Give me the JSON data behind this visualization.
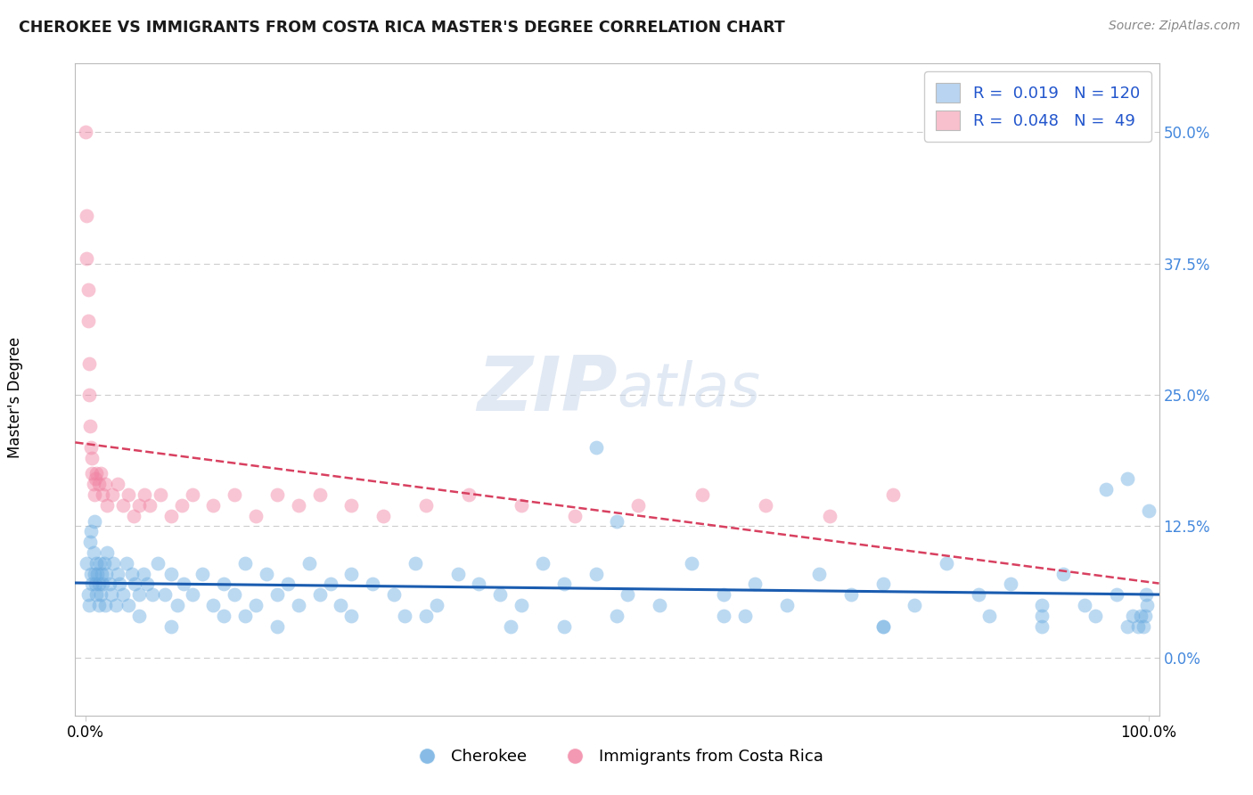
{
  "title": "CHEROKEE VS IMMIGRANTS FROM COSTA RICA MASTER'S DEGREE CORRELATION CHART",
  "source": "Source: ZipAtlas.com",
  "ylabel_left": "Master's Degree",
  "watermark_line1": "ZIP",
  "watermark_line2": "atlas",
  "xlim": [
    -0.01,
    1.01
  ],
  "ylim": [
    -0.055,
    0.565
  ],
  "xtick_pos": [
    0.0,
    1.0
  ],
  "xtick_labels": [
    "0.0%",
    "100.0%"
  ],
  "ytick_values": [
    0.0,
    0.125,
    0.25,
    0.375,
    0.5
  ],
  "ytick_labels": [
    "0.0%",
    "12.5%",
    "25.0%",
    "37.5%",
    "50.0%"
  ],
  "cherokee_R": "0.019",
  "cherokee_N": "120",
  "costa_rica_R": "0.048",
  "costa_rica_N": "49",
  "legend_fill_cherokee": "#b8d4f0",
  "legend_fill_costa_rica": "#f8c0cc",
  "scatter_color_cherokee": "#6aabe0",
  "scatter_color_costa_rica": "#f080a0",
  "trend_color_cherokee": "#1a5cb0",
  "trend_color_costa_rica": "#d84060",
  "grid_color": "#cccccc",
  "bg_color": "#ffffff",
  "title_color": "#1a1a1a",
  "source_color": "#888888",
  "legend_text_color": "#2255cc",
  "ytick_color": "#4488dd",
  "cherokee_x": [
    0.001,
    0.002,
    0.003,
    0.004,
    0.005,
    0.005,
    0.006,
    0.007,
    0.008,
    0.008,
    0.009,
    0.01,
    0.01,
    0.011,
    0.012,
    0.012,
    0.013,
    0.014,
    0.015,
    0.016,
    0.017,
    0.018,
    0.019,
    0.02,
    0.022,
    0.024,
    0.026,
    0.028,
    0.03,
    0.032,
    0.035,
    0.038,
    0.04,
    0.043,
    0.046,
    0.05,
    0.054,
    0.058,
    0.063,
    0.068,
    0.074,
    0.08,
    0.086,
    0.092,
    0.1,
    0.11,
    0.12,
    0.13,
    0.14,
    0.15,
    0.16,
    0.17,
    0.18,
    0.19,
    0.2,
    0.21,
    0.22,
    0.23,
    0.24,
    0.25,
    0.27,
    0.29,
    0.31,
    0.33,
    0.35,
    0.37,
    0.39,
    0.41,
    0.43,
    0.45,
    0.48,
    0.51,
    0.54,
    0.57,
    0.6,
    0.63,
    0.66,
    0.69,
    0.72,
    0.75,
    0.78,
    0.81,
    0.84,
    0.87,
    0.9,
    0.92,
    0.94,
    0.96,
    0.97,
    0.98,
    0.985,
    0.99,
    0.993,
    0.995,
    0.997,
    0.998,
    0.999,
    1.0,
    0.48,
    0.5,
    0.05,
    0.08,
    0.13,
    0.18,
    0.25,
    0.32,
    0.4,
    0.5,
    0.62,
    0.75,
    0.85,
    0.9,
    0.95,
    0.98,
    0.15,
    0.3,
    0.45,
    0.6,
    0.75,
    0.9
  ],
  "cherokee_y": [
    0.09,
    0.06,
    0.05,
    0.11,
    0.08,
    0.12,
    0.07,
    0.1,
    0.08,
    0.13,
    0.07,
    0.09,
    0.06,
    0.08,
    0.07,
    0.05,
    0.09,
    0.06,
    0.08,
    0.07,
    0.09,
    0.05,
    0.08,
    0.1,
    0.07,
    0.06,
    0.09,
    0.05,
    0.08,
    0.07,
    0.06,
    0.09,
    0.05,
    0.08,
    0.07,
    0.06,
    0.08,
    0.07,
    0.06,
    0.09,
    0.06,
    0.08,
    0.05,
    0.07,
    0.06,
    0.08,
    0.05,
    0.07,
    0.06,
    0.09,
    0.05,
    0.08,
    0.06,
    0.07,
    0.05,
    0.09,
    0.06,
    0.07,
    0.05,
    0.08,
    0.07,
    0.06,
    0.09,
    0.05,
    0.08,
    0.07,
    0.06,
    0.05,
    0.09,
    0.07,
    0.08,
    0.06,
    0.05,
    0.09,
    0.06,
    0.07,
    0.05,
    0.08,
    0.06,
    0.07,
    0.05,
    0.09,
    0.06,
    0.07,
    0.05,
    0.08,
    0.05,
    0.16,
    0.06,
    0.17,
    0.04,
    0.03,
    0.04,
    0.03,
    0.04,
    0.06,
    0.05,
    0.14,
    0.2,
    0.13,
    0.04,
    0.03,
    0.04,
    0.03,
    0.04,
    0.04,
    0.03,
    0.04,
    0.04,
    0.03,
    0.04,
    0.03,
    0.04,
    0.03,
    0.04,
    0.04,
    0.03,
    0.04,
    0.03,
    0.04
  ],
  "costa_rica_x": [
    0.0,
    0.001,
    0.001,
    0.002,
    0.002,
    0.003,
    0.003,
    0.004,
    0.005,
    0.006,
    0.006,
    0.007,
    0.008,
    0.009,
    0.01,
    0.012,
    0.014,
    0.016,
    0.018,
    0.02,
    0.025,
    0.03,
    0.035,
    0.04,
    0.045,
    0.05,
    0.055,
    0.06,
    0.07,
    0.08,
    0.09,
    0.1,
    0.12,
    0.14,
    0.16,
    0.18,
    0.2,
    0.22,
    0.25,
    0.28,
    0.32,
    0.36,
    0.41,
    0.46,
    0.52,
    0.58,
    0.64,
    0.7,
    0.76
  ],
  "costa_rica_y": [
    0.5,
    0.42,
    0.38,
    0.35,
    0.32,
    0.28,
    0.25,
    0.22,
    0.2,
    0.19,
    0.175,
    0.165,
    0.155,
    0.17,
    0.175,
    0.165,
    0.175,
    0.155,
    0.165,
    0.145,
    0.155,
    0.165,
    0.145,
    0.155,
    0.135,
    0.145,
    0.155,
    0.145,
    0.155,
    0.135,
    0.145,
    0.155,
    0.145,
    0.155,
    0.135,
    0.155,
    0.145,
    0.155,
    0.145,
    0.135,
    0.145,
    0.155,
    0.145,
    0.135,
    0.145,
    0.155,
    0.145,
    0.135,
    0.155
  ]
}
